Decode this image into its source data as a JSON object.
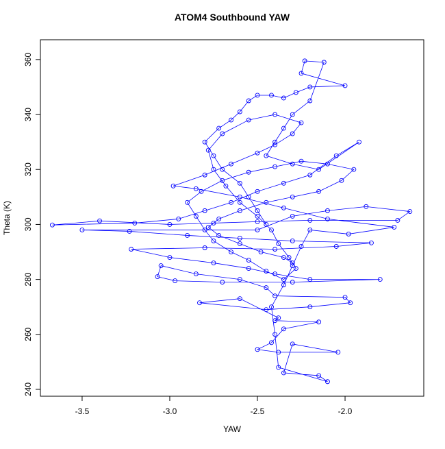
{
  "chart_data": {
    "type": "line",
    "title": "ATOM4 Southbound YAW",
    "xlabel": "YAW",
    "ylabel": "Theta (K)",
    "color": "#0000ff",
    "xlim": [
      -3.738,
      -1.551
    ],
    "ylim": [
      237.5,
      367.2
    ],
    "xticks": [
      -3.5,
      {
        "value": -3,
        "label": "-3.0"
      },
      -2.5,
      {
        "value": -2,
        "label": "-2.0"
      }
    ],
    "yticks": [
      240,
      260,
      280,
      300,
      320,
      340,
      360
    ],
    "x": [
      -2.45,
      -2.5,
      -2.55,
      -2.6,
      -2.7,
      -2.75,
      -2.8,
      -2.72,
      -2.65,
      -2.6,
      -2.55,
      -2.5,
      -2.42,
      -2.35,
      -2.28,
      -2.2,
      -2.0,
      -2.25,
      -2.23,
      -2.12,
      -2.2,
      -2.3,
      -2.35,
      -2.4,
      -2.45,
      -2.3,
      -2.15,
      -1.92,
      -2.05,
      -2.2,
      -2.35,
      -2.5,
      -2.65,
      -2.8,
      -2.95,
      -3.2,
      -3.67,
      -3.4,
      -3.0,
      -2.75,
      -2.5,
      -2.2,
      -1.7,
      -1.63,
      -1.88,
      -2.1,
      -2.3,
      -2.5,
      -3.5,
      -3.23,
      -2.9,
      -2.6,
      -2.3,
      -1.85,
      -2.05,
      -2.4,
      -2.8,
      -3.22,
      -3.0,
      -2.75,
      -2.55,
      -2.4,
      -2.2,
      -1.8,
      -2.3,
      -2.7,
      -2.97,
      -3.07,
      -3.05,
      -2.85,
      -2.6,
      -2.45,
      -2.4,
      -2.0,
      -1.97,
      -2.2,
      -2.45,
      -2.83,
      -2.6,
      -2.38,
      -2.4,
      -2.15,
      -2.35,
      -2.42,
      -2.5,
      -2.38,
      -2.04,
      -2.3,
      -2.35,
      -2.15,
      -2.1,
      -2.38,
      -2.4,
      -2.42,
      -2.35,
      -2.3,
      -2.25,
      -2.2,
      -1.98,
      -1.72,
      -2.1,
      -2.35,
      -2.6,
      -2.85,
      -2.98,
      -2.8,
      -2.65,
      -2.5,
      -2.4,
      -2.3,
      -2.25,
      -2.4,
      -2.55,
      -2.7,
      -2.78,
      -2.75,
      -2.68,
      -2.6,
      -2.5,
      -2.42,
      -2.38,
      -2.32,
      -2.28,
      -2.35,
      -2.45,
      -2.55,
      -2.65,
      -2.75,
      -2.8,
      -2.85,
      -2.9,
      -2.82,
      -2.7,
      -2.55,
      -2.4,
      -2.25,
      -2.1,
      -1.95,
      -2.02,
      -2.15,
      -2.3,
      -2.45,
      -2.6,
      -2.72,
      -2.78,
      -2.72,
      -2.6,
      -2.48,
      -2.35,
      -2.3
    ],
    "values": [
      300,
      305,
      310,
      315,
      320,
      325,
      330,
      335,
      338,
      341,
      345,
      347,
      347,
      346,
      348,
      350,
      350.5,
      355,
      359.5,
      359,
      345,
      340,
      335,
      330,
      325,
      322,
      320,
      330,
      325,
      318,
      315,
      312,
      308,
      305,
      302,
      300.5,
      299.8,
      301.3,
      300,
      300.5,
      301,
      301.5,
      301.5,
      304.7,
      306.5,
      305,
      303,
      298,
      298,
      297.5,
      296,
      295,
      294,
      293.3,
      292,
      291,
      291.5,
      291,
      288,
      286,
      284,
      282,
      280,
      280,
      279,
      279,
      279.5,
      281,
      285,
      282,
      280,
      277,
      274,
      273.5,
      271.5,
      270,
      269,
      271.5,
      273,
      266,
      265,
      264.5,
      262,
      257,
      254.5,
      253.5,
      253.5,
      256.5,
      246,
      245,
      242.8,
      248,
      260,
      270,
      278,
      285,
      292,
      298,
      296.5,
      299,
      302,
      306,
      310,
      313,
      314,
      318,
      322,
      326,
      329,
      333,
      337,
      340,
      338,
      333,
      327,
      320,
      314,
      308,
      303,
      298,
      293,
      288,
      284,
      280,
      283,
      287,
      290,
      294,
      298,
      303,
      308,
      312,
      316,
      319,
      321,
      323,
      322,
      320,
      316,
      312,
      310,
      308,
      305,
      302,
      299,
      296,
      293,
      290,
      288,
      286
    ]
  }
}
